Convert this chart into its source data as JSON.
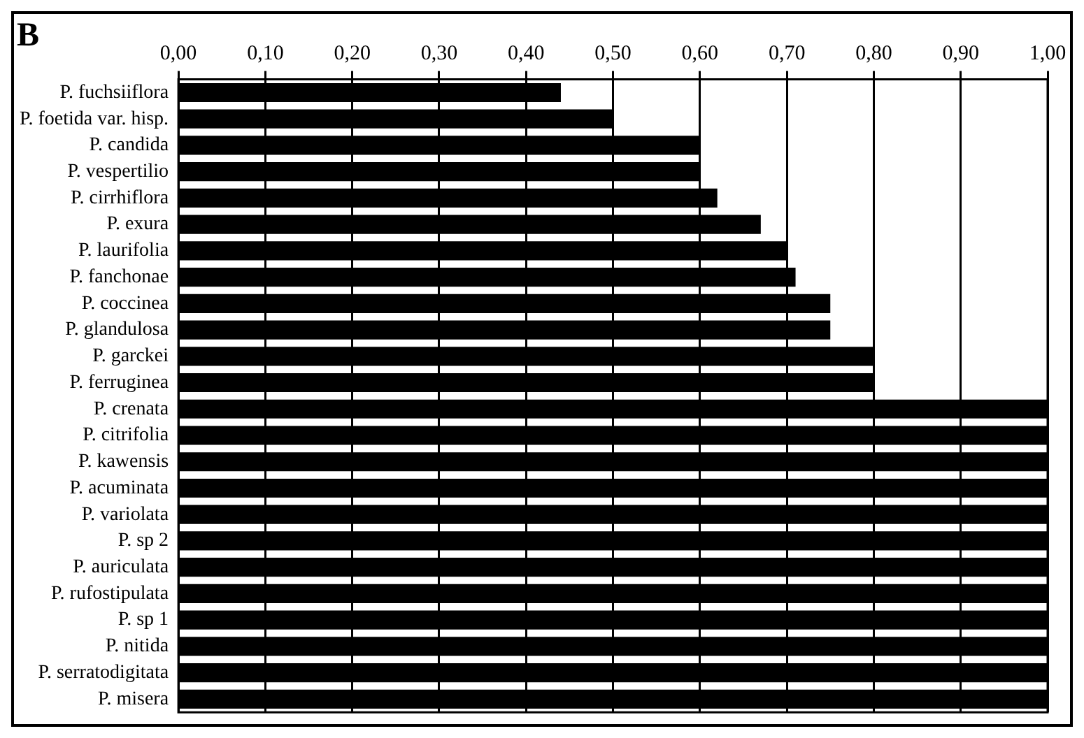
{
  "chart_data": {
    "type": "bar",
    "orientation": "horizontal",
    "title": "B",
    "categories": [
      "P. fuchsiiflora",
      "P. foetida var. hisp.",
      "P. candida",
      "P. vespertilio",
      "P. cirrhiflora",
      "P. exura",
      "P. laurifolia",
      "P. fanchonae",
      "P. coccinea",
      "P. glandulosa",
      "P. garckei",
      "P. ferruginea",
      "P. crenata",
      "P. citrifolia",
      "P. kawensis",
      "P. acuminata",
      "P. variolata",
      "P. sp 2",
      "P. auriculata",
      "P. rufostipulata",
      "P. sp 1",
      "P. nitida",
      "P. serratodigitata",
      "P. misera"
    ],
    "values": [
      0.44,
      0.5,
      0.6,
      0.6,
      0.62,
      0.67,
      0.7,
      0.71,
      0.75,
      0.75,
      0.8,
      0.8,
      1,
      1,
      1,
      1,
      1,
      1,
      1,
      1,
      1,
      1,
      1,
      1
    ],
    "color": "#000000",
    "xlim": [
      0,
      1
    ],
    "xticks": [
      {
        "value": 0,
        "label": "0,00"
      },
      {
        "value": 0.1,
        "label": "0,10"
      },
      {
        "value": 0.2,
        "label": "0,20"
      },
      {
        "value": 0.3,
        "label": "0,30"
      },
      {
        "value": 0.4,
        "label": "0,40"
      },
      {
        "value": 0.5,
        "label": "0,50"
      },
      {
        "value": 0.6,
        "label": "0,60"
      },
      {
        "value": 0.7,
        "label": "0,70"
      },
      {
        "value": 0.8,
        "label": "0,80"
      },
      {
        "value": 0.9,
        "label": "0,90"
      },
      {
        "value": 1,
        "label": "1,00"
      }
    ],
    "grid": "x",
    "legend": false
  }
}
